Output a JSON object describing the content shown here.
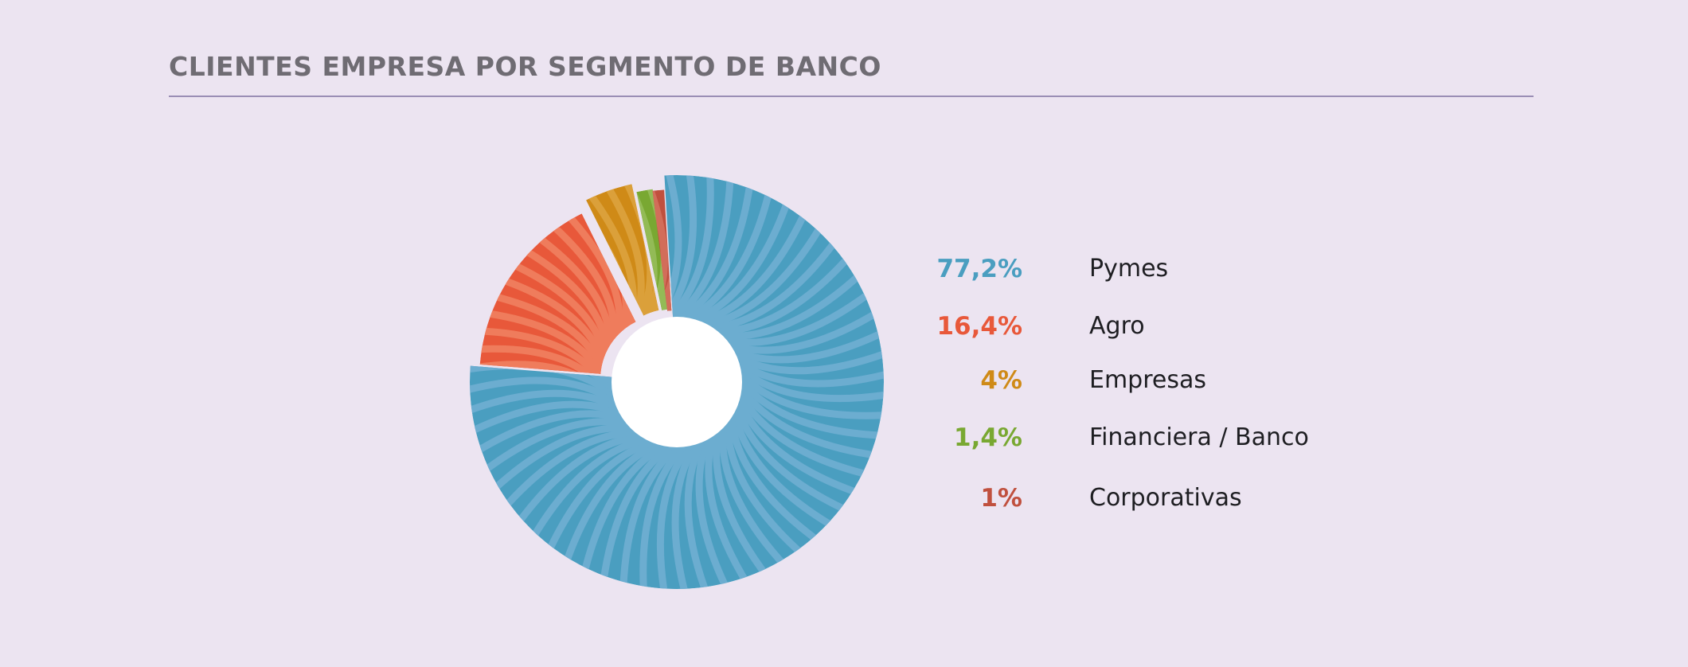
{
  "chart_data": {
    "type": "pie",
    "title": "CLIENTES EMPRESA POR SEGMENTO DE BANCO",
    "series": [
      {
        "name": "Pymes",
        "value": 77.2,
        "label": "77,2%",
        "color": "#4a9ec0",
        "stripe": "#6cadd0"
      },
      {
        "name": "Agro",
        "value": 16.4,
        "label": "16,4%",
        "color": "#e8583a",
        "stripe": "#ef7c5c"
      },
      {
        "name": "Empresas",
        "value": 4,
        "label": "4%",
        "color": "#cf8a17",
        "stripe": "#dba03a"
      },
      {
        "name": "Financiera / Banco",
        "value": 1.4,
        "label": "1,4%",
        "color": "#79a832",
        "stripe": "#93bb56"
      },
      {
        "name": "Corporativas",
        "value": 1,
        "label": "1%",
        "color": "#c0503e",
        "stripe": "#d26d5a"
      }
    ],
    "legend_position": "right"
  },
  "colors": {
    "background": "#ece4f1",
    "title_text": "#6f6c73",
    "title_rule": "#9a8eb5",
    "hole": "#ffffff"
  }
}
